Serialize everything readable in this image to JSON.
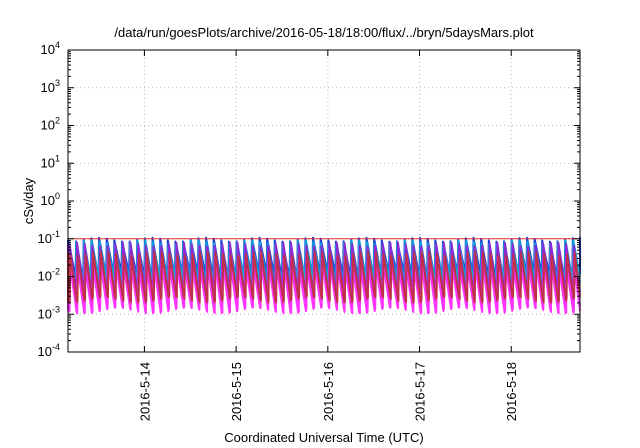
{
  "chart_data": {
    "type": "line",
    "title": "/data/run/goesPlots/archive/2016-05-18/18:00/flux/../bryn/5daysMars.plot",
    "xlabel": "Coordinated Universal Time (UTC)",
    "ylabel": "cSv/day",
    "yscale": "log",
    "xlim": [
      "2016-05-13T04:00",
      "2016-05-18T18:00"
    ],
    "ylim": [
      0.0001,
      10000
    ],
    "grid": true,
    "x_ticks": [
      {
        "value": "2016-05-14T00:00",
        "label": "2016-5-14"
      },
      {
        "value": "2016-05-15T00:00",
        "label": "2016-5-15"
      },
      {
        "value": "2016-05-16T00:00",
        "label": "2016-5-16"
      },
      {
        "value": "2016-05-17T00:00",
        "label": "2016-5-17"
      },
      {
        "value": "2016-05-18T00:00",
        "label": "2016-5-18"
      }
    ],
    "y_ticks": [
      {
        "value": 0.0001,
        "base": "10",
        "exp": "-4"
      },
      {
        "value": 0.001,
        "base": "10",
        "exp": "-3"
      },
      {
        "value": 0.01,
        "base": "10",
        "exp": "-2"
      },
      {
        "value": 0.1,
        "base": "10",
        "exp": "-1"
      },
      {
        "value": 1,
        "base": "10",
        "exp": "0"
      },
      {
        "value": 10,
        "base": "10",
        "exp": "1"
      },
      {
        "value": 100,
        "base": "10",
        "exp": "2"
      },
      {
        "value": 1000,
        "base": "10",
        "exp": "3"
      },
      {
        "value": 10000,
        "base": "10",
        "exp": "4"
      }
    ],
    "reference_line": {
      "value": 0.1,
      "color": "#e0302a"
    },
    "cycles_per_day": 12,
    "series": [
      {
        "color": "#1f3bd6",
        "peak": 0.095,
        "trough": 0.012
      },
      {
        "color": "#0a9fd8",
        "peak": 0.08,
        "trough": 0.009
      },
      {
        "color": "#18c8c8",
        "peak": 0.06,
        "trough": 0.006
      },
      {
        "color": "#8a2bd6",
        "peak": 0.07,
        "trough": 0.004
      },
      {
        "color": "#d01fd0",
        "peak": 0.03,
        "trough": 0.002
      },
      {
        "color": "#ff33ff",
        "peak": 0.02,
        "trough": 0.0013
      },
      {
        "color": "#c0304a",
        "peak": 0.04,
        "trough": 0.0025
      }
    ]
  }
}
